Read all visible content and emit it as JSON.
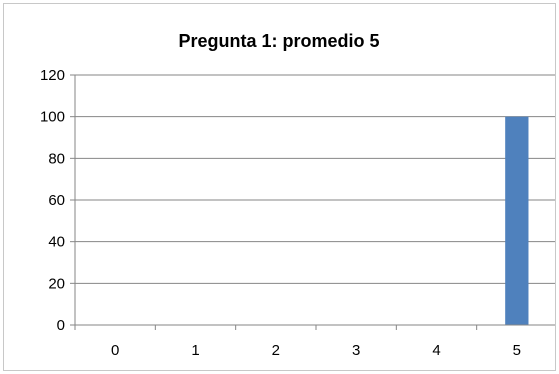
{
  "chart_data": {
    "type": "bar",
    "title": "Pregunta 1: promedio 5",
    "categories": [
      "0",
      "1",
      "2",
      "3",
      "4",
      "5"
    ],
    "values": [
      0,
      0,
      0,
      0,
      0,
      100
    ],
    "ylim": [
      0,
      120
    ],
    "yticks": [
      0,
      20,
      40,
      60,
      80,
      100,
      120
    ],
    "grid": true,
    "legend": "none",
    "bar_color": "#4f81bd",
    "grid_color": "#868686",
    "axis_color": "#868686"
  }
}
